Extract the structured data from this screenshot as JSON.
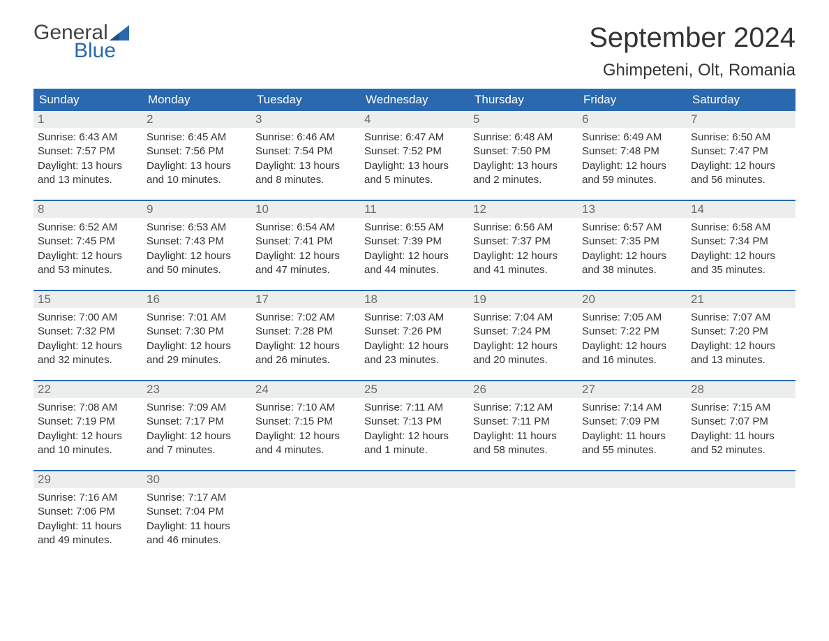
{
  "logo": {
    "word1": "General",
    "word2": "Blue"
  },
  "title": "September 2024",
  "location": "Ghimpeteni, Olt, Romania",
  "colors": {
    "header_bg": "#2a68af",
    "header_text": "#ffffff",
    "daynum_bg": "#eceded",
    "daynum_text": "#6a6a6a",
    "body_text": "#333333",
    "logo_gray": "#444444",
    "logo_blue": "#2a68af",
    "week_border": "#2a68af",
    "page_bg": "#ffffff"
  },
  "day_names": [
    "Sunday",
    "Monday",
    "Tuesday",
    "Wednesday",
    "Thursday",
    "Friday",
    "Saturday"
  ],
  "weeks": [
    [
      {
        "n": "1",
        "sunrise": "Sunrise: 6:43 AM",
        "sunset": "Sunset: 7:57 PM",
        "d1": "Daylight: 13 hours",
        "d2": "and 13 minutes."
      },
      {
        "n": "2",
        "sunrise": "Sunrise: 6:45 AM",
        "sunset": "Sunset: 7:56 PM",
        "d1": "Daylight: 13 hours",
        "d2": "and 10 minutes."
      },
      {
        "n": "3",
        "sunrise": "Sunrise: 6:46 AM",
        "sunset": "Sunset: 7:54 PM",
        "d1": "Daylight: 13 hours",
        "d2": "and 8 minutes."
      },
      {
        "n": "4",
        "sunrise": "Sunrise: 6:47 AM",
        "sunset": "Sunset: 7:52 PM",
        "d1": "Daylight: 13 hours",
        "d2": "and 5 minutes."
      },
      {
        "n": "5",
        "sunrise": "Sunrise: 6:48 AM",
        "sunset": "Sunset: 7:50 PM",
        "d1": "Daylight: 13 hours",
        "d2": "and 2 minutes."
      },
      {
        "n": "6",
        "sunrise": "Sunrise: 6:49 AM",
        "sunset": "Sunset: 7:48 PM",
        "d1": "Daylight: 12 hours",
        "d2": "and 59 minutes."
      },
      {
        "n": "7",
        "sunrise": "Sunrise: 6:50 AM",
        "sunset": "Sunset: 7:47 PM",
        "d1": "Daylight: 12 hours",
        "d2": "and 56 minutes."
      }
    ],
    [
      {
        "n": "8",
        "sunrise": "Sunrise: 6:52 AM",
        "sunset": "Sunset: 7:45 PM",
        "d1": "Daylight: 12 hours",
        "d2": "and 53 minutes."
      },
      {
        "n": "9",
        "sunrise": "Sunrise: 6:53 AM",
        "sunset": "Sunset: 7:43 PM",
        "d1": "Daylight: 12 hours",
        "d2": "and 50 minutes."
      },
      {
        "n": "10",
        "sunrise": "Sunrise: 6:54 AM",
        "sunset": "Sunset: 7:41 PM",
        "d1": "Daylight: 12 hours",
        "d2": "and 47 minutes."
      },
      {
        "n": "11",
        "sunrise": "Sunrise: 6:55 AM",
        "sunset": "Sunset: 7:39 PM",
        "d1": "Daylight: 12 hours",
        "d2": "and 44 minutes."
      },
      {
        "n": "12",
        "sunrise": "Sunrise: 6:56 AM",
        "sunset": "Sunset: 7:37 PM",
        "d1": "Daylight: 12 hours",
        "d2": "and 41 minutes."
      },
      {
        "n": "13",
        "sunrise": "Sunrise: 6:57 AM",
        "sunset": "Sunset: 7:35 PM",
        "d1": "Daylight: 12 hours",
        "d2": "and 38 minutes."
      },
      {
        "n": "14",
        "sunrise": "Sunrise: 6:58 AM",
        "sunset": "Sunset: 7:34 PM",
        "d1": "Daylight: 12 hours",
        "d2": "and 35 minutes."
      }
    ],
    [
      {
        "n": "15",
        "sunrise": "Sunrise: 7:00 AM",
        "sunset": "Sunset: 7:32 PM",
        "d1": "Daylight: 12 hours",
        "d2": "and 32 minutes."
      },
      {
        "n": "16",
        "sunrise": "Sunrise: 7:01 AM",
        "sunset": "Sunset: 7:30 PM",
        "d1": "Daylight: 12 hours",
        "d2": "and 29 minutes."
      },
      {
        "n": "17",
        "sunrise": "Sunrise: 7:02 AM",
        "sunset": "Sunset: 7:28 PM",
        "d1": "Daylight: 12 hours",
        "d2": "and 26 minutes."
      },
      {
        "n": "18",
        "sunrise": "Sunrise: 7:03 AM",
        "sunset": "Sunset: 7:26 PM",
        "d1": "Daylight: 12 hours",
        "d2": "and 23 minutes."
      },
      {
        "n": "19",
        "sunrise": "Sunrise: 7:04 AM",
        "sunset": "Sunset: 7:24 PM",
        "d1": "Daylight: 12 hours",
        "d2": "and 20 minutes."
      },
      {
        "n": "20",
        "sunrise": "Sunrise: 7:05 AM",
        "sunset": "Sunset: 7:22 PM",
        "d1": "Daylight: 12 hours",
        "d2": "and 16 minutes."
      },
      {
        "n": "21",
        "sunrise": "Sunrise: 7:07 AM",
        "sunset": "Sunset: 7:20 PM",
        "d1": "Daylight: 12 hours",
        "d2": "and 13 minutes."
      }
    ],
    [
      {
        "n": "22",
        "sunrise": "Sunrise: 7:08 AM",
        "sunset": "Sunset: 7:19 PM",
        "d1": "Daylight: 12 hours",
        "d2": "and 10 minutes."
      },
      {
        "n": "23",
        "sunrise": "Sunrise: 7:09 AM",
        "sunset": "Sunset: 7:17 PM",
        "d1": "Daylight: 12 hours",
        "d2": "and 7 minutes."
      },
      {
        "n": "24",
        "sunrise": "Sunrise: 7:10 AM",
        "sunset": "Sunset: 7:15 PM",
        "d1": "Daylight: 12 hours",
        "d2": "and 4 minutes."
      },
      {
        "n": "25",
        "sunrise": "Sunrise: 7:11 AM",
        "sunset": "Sunset: 7:13 PM",
        "d1": "Daylight: 12 hours",
        "d2": "and 1 minute."
      },
      {
        "n": "26",
        "sunrise": "Sunrise: 7:12 AM",
        "sunset": "Sunset: 7:11 PM",
        "d1": "Daylight: 11 hours",
        "d2": "and 58 minutes."
      },
      {
        "n": "27",
        "sunrise": "Sunrise: 7:14 AM",
        "sunset": "Sunset: 7:09 PM",
        "d1": "Daylight: 11 hours",
        "d2": "and 55 minutes."
      },
      {
        "n": "28",
        "sunrise": "Sunrise: 7:15 AM",
        "sunset": "Sunset: 7:07 PM",
        "d1": "Daylight: 11 hours",
        "d2": "and 52 minutes."
      }
    ],
    [
      {
        "n": "29",
        "sunrise": "Sunrise: 7:16 AM",
        "sunset": "Sunset: 7:06 PM",
        "d1": "Daylight: 11 hours",
        "d2": "and 49 minutes."
      },
      {
        "n": "30",
        "sunrise": "Sunrise: 7:17 AM",
        "sunset": "Sunset: 7:04 PM",
        "d1": "Daylight: 11 hours",
        "d2": "and 46 minutes."
      },
      null,
      null,
      null,
      null,
      null
    ]
  ]
}
